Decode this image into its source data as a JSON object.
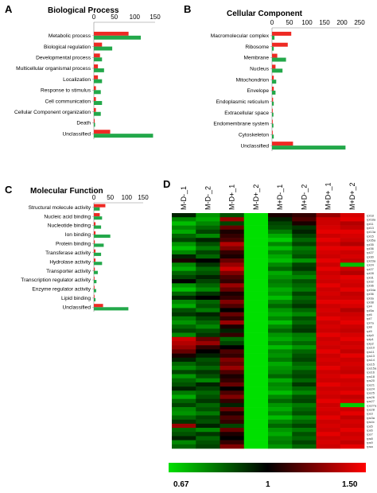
{
  "colors": {
    "series_1": "#ee2a24",
    "series_2": "#23a84a",
    "low": "#00e000",
    "mid": "#000000",
    "high": "#ff0000"
  },
  "chart_data": [
    {
      "panel": "A",
      "type": "bar",
      "title": "Biological Process",
      "xticks": [
        "0",
        "50",
        "100",
        "150"
      ],
      "xlim": [
        0,
        150
      ],
      "categories": [
        "Metabolic process",
        "Biological regulation",
        "Developmental process",
        "Multicellular organismal process",
        "Localization",
        "Response to stimulus",
        "Cell communication",
        "Cellular Component organization",
        "Death",
        "Unclassified"
      ],
      "series": [
        {
          "color": "#ee2a24",
          "values": [
            85,
            20,
            15,
            10,
            10,
            5,
            5,
            5,
            2,
            40
          ]
        },
        {
          "color": "#23a84a",
          "values": [
            115,
            45,
            20,
            25,
            20,
            17,
            20,
            17,
            3,
            145
          ]
        }
      ]
    },
    {
      "panel": "B",
      "type": "bar",
      "title": "Cellular Component",
      "xticks": [
        "0",
        "50",
        "100",
        "150",
        "200",
        "250"
      ],
      "xlim": [
        0,
        250
      ],
      "categories": [
        "Macromolecular complex",
        "Ribosome",
        "Membrane",
        "Nucleus",
        "Mitochondrion",
        "Envelope",
        "Endoplasmic reticulum",
        "Extracellular space",
        "Endomembrane system",
        "Cytoskeleton",
        "Unclassified"
      ],
      "series": [
        {
          "color": "#ee2a24",
          "values": [
            55,
            45,
            15,
            10,
            5,
            5,
            3,
            2,
            2,
            2,
            60
          ]
        },
        {
          "color": "#23a84a",
          "values": [
            7,
            5,
            40,
            30,
            12,
            10,
            5,
            4,
            4,
            5,
            210
          ]
        }
      ]
    },
    {
      "panel": "C",
      "type": "bar",
      "title": "Molecular Function",
      "xticks": [
        "0",
        "50",
        "100",
        "150"
      ],
      "xlim": [
        0,
        150
      ],
      "categories": [
        "Structural molecule activity",
        "Nucleic acid binding",
        "Nucleotide binding",
        "Ion binding",
        "Protein binding",
        "Transferase activity",
        "Hydrolase activity",
        "Transporter activity",
        "Transcription regulator activity",
        "Enzyme regulator activity",
        "Lipid binding",
        "Unclassified"
      ],
      "series": [
        {
          "color": "#ee2a24",
          "values": [
            35,
            18,
            5,
            5,
            3,
            5,
            5,
            3,
            2,
            2,
            2,
            28
          ]
        },
        {
          "color": "#23a84a",
          "values": [
            18,
            25,
            22,
            50,
            30,
            22,
            25,
            12,
            8,
            7,
            5,
            105
          ]
        }
      ]
    },
    {
      "panel": "D",
      "type": "heatmap",
      "columns": [
        "M-D-_1",
        "M-D-_2",
        "M-D+_1",
        "M-D+_2",
        "M+D-_1",
        "M+D-_2",
        "M+D+_1",
        "M+D+_2"
      ],
      "rows": [
        "rpl18",
        "rpl18a",
        "rpl11",
        "rpl13",
        "rpl13a",
        "rpl15",
        "rpl35a",
        "rpl35",
        "rpl36",
        "rpl27",
        "rpl30",
        "rpl23a",
        "rpl24",
        "rpl27",
        "rpl28",
        "rpl31",
        "rpl32",
        "rpl36",
        "rpl34a",
        "rpl36",
        "rpl3a",
        "rpl38",
        "rpl4",
        "rpl5a",
        "rpl6",
        "rpl7",
        "rpl7a",
        "rpl8",
        "rpl9",
        "rplp0",
        "rplp1",
        "rplp2",
        "rps10",
        "rps11",
        "rps13",
        "rps14",
        "rps15",
        "rps15a",
        "rps16",
        "rps18",
        "rps20",
        "rps21",
        "rps24",
        "rps25",
        "rps26",
        "rps27",
        "rps27a",
        "rps28",
        "rps3",
        "rps3a",
        "rps4x",
        "rps5",
        "rps6",
        "rps7",
        "rps8",
        "rps9",
        "rpsa"
      ],
      "values": [
        [
          0.95,
          0.78,
          0.88,
          0.67,
          1.05,
          1.1,
          1.3,
          1.42
        ],
        [
          0.8,
          0.75,
          1.3,
          0.67,
          0.95,
          1.15,
          1.4,
          1.45
        ],
        [
          0.72,
          0.8,
          0.9,
          0.67,
          0.9,
          1.05,
          1.4,
          1.35
        ],
        [
          0.8,
          0.85,
          1.2,
          0.67,
          0.88,
          0.92,
          1.42,
          1.38
        ],
        [
          0.75,
          0.9,
          1.05,
          0.67,
          0.82,
          0.95,
          1.45,
          1.45
        ],
        [
          0.85,
          0.8,
          1.1,
          0.67,
          0.75,
          0.9,
          1.4,
          1.42
        ],
        [
          0.9,
          0.95,
          1.15,
          0.67,
          0.7,
          0.85,
          1.45,
          1.4
        ],
        [
          0.78,
          0.88,
          1.35,
          0.67,
          0.8,
          0.9,
          1.4,
          1.35
        ],
        [
          0.72,
          0.82,
          1.25,
          0.67,
          0.72,
          0.82,
          1.45,
          1.45
        ],
        [
          0.8,
          0.9,
          1.1,
          0.67,
          0.8,
          0.85,
          1.42,
          1.4
        ],
        [
          0.95,
          0.85,
          1.05,
          0.67,
          0.75,
          0.88,
          1.4,
          1.42
        ],
        [
          1.05,
          1.0,
          1.2,
          0.67,
          0.72,
          0.78,
          1.45,
          1.38
        ],
        [
          0.8,
          0.92,
          1.3,
          0.67,
          0.8,
          0.9,
          1.4,
          0.72
        ],
        [
          0.75,
          0.85,
          1.4,
          0.67,
          0.85,
          0.92,
          1.45,
          1.4
        ],
        [
          0.85,
          0.88,
          1.25,
          0.67,
          0.75,
          0.85,
          1.4,
          1.35
        ],
        [
          0.9,
          0.95,
          1.15,
          0.67,
          0.78,
          0.8,
          1.42,
          1.45
        ],
        [
          1.0,
          0.9,
          1.1,
          0.67,
          0.82,
          0.88,
          1.4,
          1.42
        ],
        [
          0.78,
          0.85,
          1.3,
          0.67,
          0.8,
          0.85,
          1.45,
          1.4
        ],
        [
          0.72,
          0.8,
          1.2,
          0.67,
          0.75,
          0.82,
          1.4,
          1.45
        ],
        [
          0.85,
          0.92,
          1.05,
          0.67,
          0.78,
          0.9,
          1.42,
          1.38
        ],
        [
          0.95,
          1.0,
          1.1,
          0.67,
          0.72,
          0.85,
          1.4,
          1.4
        ],
        [
          0.8,
          0.85,
          1.25,
          0.67,
          0.8,
          0.88,
          1.45,
          1.45
        ],
        [
          0.75,
          0.88,
          1.15,
          0.67,
          0.85,
          0.92,
          1.4,
          1.42
        ],
        [
          0.88,
          0.82,
          1.0,
          0.67,
          0.78,
          0.85,
          1.42,
          1.35
        ],
        [
          0.92,
          0.95,
          1.2,
          0.67,
          0.75,
          0.8,
          1.4,
          1.4
        ],
        [
          0.82,
          0.9,
          1.1,
          0.67,
          0.8,
          0.88,
          1.45,
          1.42
        ],
        [
          0.78,
          0.85,
          1.3,
          0.67,
          0.72,
          0.85,
          1.4,
          1.45
        ],
        [
          0.85,
          0.8,
          1.05,
          0.67,
          0.8,
          0.9,
          1.42,
          1.4
        ],
        [
          0.9,
          0.88,
          0.95,
          0.67,
          0.85,
          0.92,
          1.4,
          1.38
        ],
        [
          0.8,
          0.92,
          1.1,
          0.67,
          0.78,
          0.82,
          1.45,
          1.42
        ],
        [
          1.4,
          1.2,
          0.85,
          0.67,
          0.75,
          0.8,
          1.4,
          1.45
        ],
        [
          1.35,
          1.3,
          0.9,
          0.67,
          0.8,
          0.85,
          1.42,
          1.4
        ],
        [
          1.3,
          1.1,
          1.0,
          0.67,
          0.72,
          0.78,
          1.4,
          1.42
        ],
        [
          1.2,
          1.0,
          1.15,
          0.67,
          0.8,
          0.85,
          1.45,
          1.38
        ],
        [
          1.05,
          0.95,
          1.1,
          0.67,
          0.78,
          0.88,
          1.4,
          1.45
        ],
        [
          0.95,
          0.88,
          1.25,
          0.67,
          0.82,
          0.9,
          1.42,
          1.4
        ],
        [
          0.85,
          0.9,
          1.2,
          0.67,
          0.75,
          0.85,
          1.4,
          1.42
        ],
        [
          0.8,
          0.85,
          1.3,
          0.67,
          0.78,
          0.82,
          1.45,
          1.4
        ],
        [
          0.9,
          0.92,
          1.15,
          0.67,
          0.8,
          0.88,
          1.4,
          1.38
        ],
        [
          0.78,
          0.88,
          1.05,
          0.67,
          0.85,
          0.9,
          1.42,
          1.45
        ],
        [
          0.85,
          0.8,
          1.1,
          0.67,
          0.75,
          0.85,
          1.4,
          1.4
        ],
        [
          0.88,
          0.95,
          1.2,
          0.67,
          0.8,
          0.92,
          1.45,
          1.42
        ],
        [
          0.95,
          0.9,
          1.0,
          0.67,
          0.78,
          0.85,
          1.4,
          1.4
        ],
        [
          0.82,
          0.85,
          1.15,
          0.67,
          0.72,
          0.8,
          1.42,
          1.45
        ],
        [
          0.75,
          0.88,
          1.25,
          0.67,
          0.8,
          0.88,
          1.4,
          1.38
        ],
        [
          0.85,
          0.92,
          1.1,
          0.67,
          0.85,
          0.9,
          1.45,
          1.42
        ],
        [
          0.9,
          0.85,
          0.95,
          0.67,
          0.78,
          0.82,
          1.4,
          0.7
        ],
        [
          0.8,
          0.88,
          1.2,
          0.67,
          0.75,
          0.85,
          1.42,
          1.4
        ],
        [
          0.78,
          0.82,
          1.05,
          0.67,
          0.8,
          0.88,
          1.4,
          1.45
        ],
        [
          0.85,
          0.9,
          1.15,
          0.67,
          0.72,
          0.8,
          1.45,
          1.38
        ],
        [
          0.92,
          0.88,
          1.1,
          0.67,
          0.8,
          0.85,
          1.4,
          1.42
        ],
        [
          1.3,
          0.95,
          0.9,
          0.67,
          0.85,
          0.9,
          1.42,
          1.4
        ],
        [
          0.85,
          0.8,
          1.2,
          0.67,
          0.78,
          0.82,
          1.4,
          1.45
        ],
        [
          0.88,
          0.92,
          1.05,
          0.67,
          0.75,
          0.88,
          1.45,
          1.4
        ],
        [
          0.95,
          0.85,
          1.0,
          0.67,
          0.8,
          0.85,
          1.4,
          1.42
        ],
        [
          0.8,
          0.88,
          1.1,
          0.67,
          0.82,
          0.9,
          1.42,
          1.38
        ],
        [
          0.85,
          0.9,
          1.25,
          0.67,
          0.78,
          0.85,
          1.4,
          1.45
        ]
      ],
      "scale": {
        "min": 0.67,
        "mid": 1,
        "max": 1.5,
        "labels": [
          "0.67",
          "1",
          "1.50"
        ]
      }
    }
  ]
}
